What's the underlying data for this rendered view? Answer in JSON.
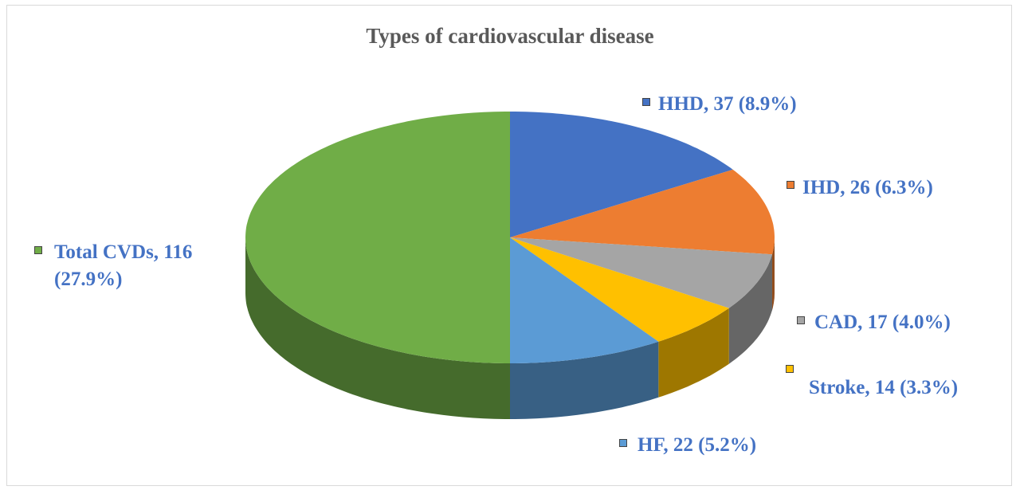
{
  "chart_data": {
    "type": "pie3d",
    "title": "Types of cardiovascular disease",
    "categories": [
      "HHD",
      "IHD",
      "CAD",
      "Stroke",
      "HF",
      "Total CVDs"
    ],
    "values": [
      37,
      26,
      17,
      14,
      22,
      116
    ],
    "value_labels": [
      "HHD, 37 (8.9%)",
      "IHD, 26 (6.3%)",
      "CAD, 17 (4.0%)",
      "Stroke, 14 (3.3%)",
      "HF, 22 (5.2%)",
      "Total CVDs, 116 (27.9%)"
    ],
    "colors": [
      "#4472c4",
      "#ed7d31",
      "#a5a5a5",
      "#ffc000",
      "#5b9bd5",
      "#70ad47"
    ]
  }
}
